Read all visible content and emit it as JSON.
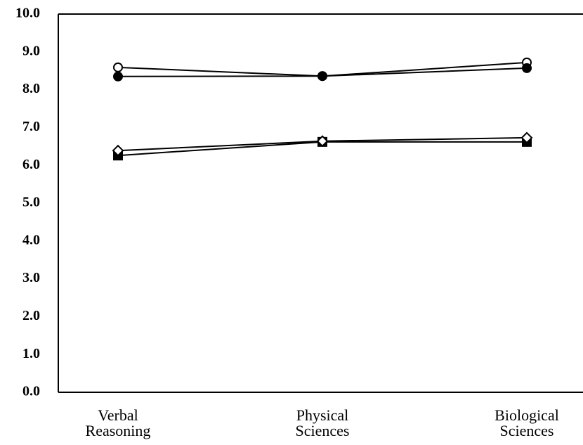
{
  "chart_data": {
    "type": "line",
    "categories": [
      "Verbal Reasoning",
      "Physical Sciences",
      "Biological Sciences"
    ],
    "series": [
      {
        "color": "#000000",
        "marker": "circle",
        "marker_fill": "#ffffff",
        "values": [
          8.59,
          8.36,
          8.72
        ]
      },
      {
        "color": "#000000",
        "marker": "circle",
        "marker_fill": "#000000",
        "values": [
          8.35,
          8.36,
          8.57
        ]
      },
      {
        "color": "#000000",
        "marker": "square",
        "marker_fill": "#000000",
        "values": [
          6.26,
          6.62,
          6.62
        ]
      },
      {
        "color": "#000000",
        "marker": "diamond",
        "marker_fill": "#ffffff",
        "values": [
          6.39,
          6.64,
          6.73
        ]
      }
    ],
    "ylim": [
      0,
      10
    ],
    "yticks": [
      {
        "value": 0,
        "label": "0.0"
      },
      {
        "value": 1,
        "label": "1.0"
      },
      {
        "value": 2,
        "label": "2.0"
      },
      {
        "value": 3,
        "label": "3.0"
      },
      {
        "value": 4,
        "label": "4.0"
      },
      {
        "value": 5,
        "label": "5.0"
      },
      {
        "value": 6,
        "label": "6.0"
      },
      {
        "value": 7,
        "label": "7.0"
      },
      {
        "value": 8,
        "label": "8.0"
      },
      {
        "value": 9,
        "label": "9.0"
      },
      {
        "value": 10,
        "label": "10.0"
      }
    ],
    "grid": false
  }
}
